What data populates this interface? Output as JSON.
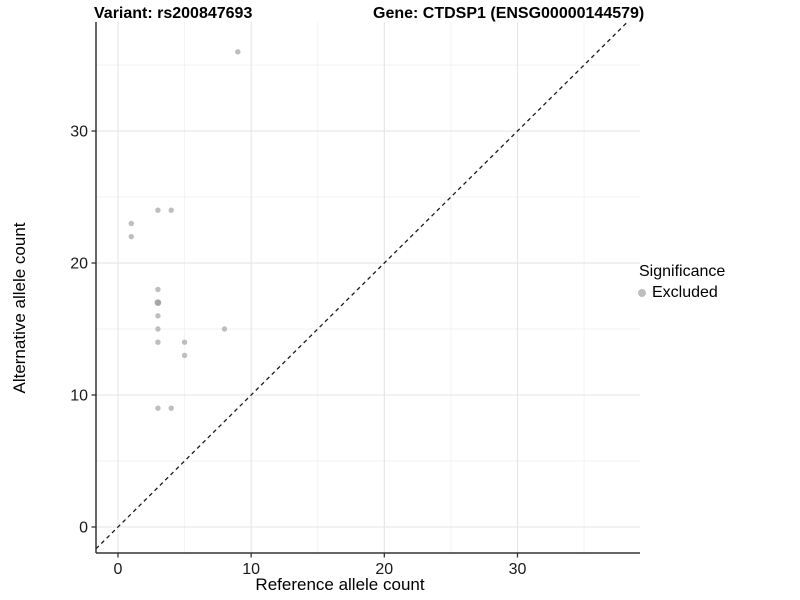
{
  "titles": {
    "left": "Variant: rs200847693",
    "right": "Gene: CTDSP1 (ENSG00000144579)"
  },
  "chart_data": {
    "type": "scatter",
    "title_left": "Variant: rs200847693",
    "title_right": "Gene: CTDSP1 (ENSG00000144579)",
    "xlabel": "Reference allele count",
    "ylabel": "Alternative allele count",
    "xlim": [
      -1.65,
      39.2
    ],
    "ylim": [
      -1.97,
      38.26
    ],
    "x_major_ticks": [
      0,
      10,
      20,
      30
    ],
    "x_minor_ticks": [
      5,
      15,
      25,
      35
    ],
    "y_major_ticks": [
      0,
      10,
      20,
      30
    ],
    "y_minor_ticks": [
      5,
      15,
      25,
      35
    ],
    "grid": "major+minor",
    "identity_line": {
      "slope": 1,
      "intercept": 0,
      "style": "dashed",
      "color": "#1a1a1a"
    },
    "series": [
      {
        "name": "Excluded",
        "point_color": "#BEBEBE",
        "overplot_color": "#A6A6A6",
        "points": [
          {
            "x": 9,
            "y": 36
          },
          {
            "x": 3,
            "y": 24
          },
          {
            "x": 4,
            "y": 24
          },
          {
            "x": 1,
            "y": 23
          },
          {
            "x": 1,
            "y": 22
          },
          {
            "x": 3,
            "y": 18
          },
          {
            "x": 3,
            "y": 17,
            "emphasis": true
          },
          {
            "x": 3,
            "y": 16
          },
          {
            "x": 3,
            "y": 15
          },
          {
            "x": 3,
            "y": 14
          },
          {
            "x": 8,
            "y": 15
          },
          {
            "x": 5,
            "y": 14
          },
          {
            "x": 5,
            "y": 13
          },
          {
            "x": 3,
            "y": 9
          },
          {
            "x": 4,
            "y": 9
          }
        ]
      }
    ],
    "legend": {
      "title": "Significance",
      "position": "right",
      "entries": [
        {
          "label": "Excluded",
          "color": "#BEBEBE"
        }
      ]
    },
    "colors": {
      "major_grid": "#E5E5E5",
      "minor_grid": "#F2F2F2",
      "axis_line": "#333333",
      "tick_text": "#1a1a1a"
    }
  }
}
